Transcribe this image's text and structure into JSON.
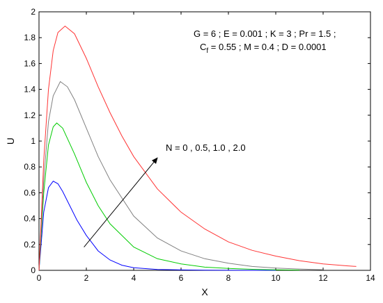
{
  "chart_data": {
    "type": "line",
    "xlabel": "X",
    "ylabel": "U",
    "xlim": [
      0,
      14
    ],
    "ylim": [
      0,
      2
    ],
    "xticks": [
      0,
      2,
      4,
      6,
      8,
      10,
      12,
      14
    ],
    "yticks": [
      0,
      0.2,
      0.4,
      0.6,
      0.8,
      1,
      1.2,
      1.4,
      1.6,
      1.8,
      2
    ],
    "xtick_labels": [
      "0",
      "2",
      "4",
      "6",
      "8",
      "10",
      "12",
      "14"
    ],
    "ytick_labels": [
      "0",
      "0.2",
      "0.4",
      "0.6",
      "0.8",
      "1",
      "1.2",
      "1.4",
      "1.6",
      "1.8",
      "2"
    ],
    "grid": false,
    "params_line1": "G = 6 ;  E = 0.001 ; K = 3 ; Pr = 1.5 ;",
    "params_line2_c": "C",
    "params_line2_sub": "f",
    "params_line2_rest": " = 0.55 ; M = 0.4 ; D = 0.0001",
    "arrow_label": "N = 0 , 0.5,  1.0 , 2.0",
    "arrow": {
      "from": [
        1.9,
        0.18
      ],
      "to": [
        5.0,
        0.87
      ]
    },
    "series": [
      {
        "color": "#0000ff",
        "x": [
          0,
          0.2,
          0.4,
          0.6,
          0.8,
          1.0,
          1.3,
          1.6,
          2.0,
          2.5,
          3.0,
          3.5,
          4.0,
          5.0,
          6.0,
          7.0,
          8.0,
          10.0
        ],
        "values": [
          0,
          0.45,
          0.64,
          0.69,
          0.67,
          0.61,
          0.5,
          0.39,
          0.27,
          0.15,
          0.08,
          0.04,
          0.02,
          0.007,
          0.003,
          0.001,
          0.0005,
          0.0
        ]
      },
      {
        "color": "#00cc00",
        "x": [
          0,
          0.2,
          0.4,
          0.6,
          0.75,
          1.0,
          1.5,
          2.0,
          2.5,
          3.0,
          4.0,
          5.0,
          6.0,
          7.0,
          8.0,
          9.0,
          10.0,
          11.0
        ],
        "values": [
          0,
          0.6,
          0.97,
          1.11,
          1.14,
          1.1,
          0.9,
          0.68,
          0.5,
          0.36,
          0.18,
          0.09,
          0.05,
          0.025,
          0.015,
          0.008,
          0.004,
          0.002
        ]
      },
      {
        "color": "#808080",
        "x": [
          0,
          0.2,
          0.4,
          0.6,
          0.9,
          1.2,
          1.5,
          2.0,
          2.5,
          3.0,
          4.0,
          5.0,
          6.0,
          7.0,
          8.0,
          9.0,
          10.0,
          11.0,
          12.0
        ],
        "values": [
          0,
          0.7,
          1.15,
          1.35,
          1.46,
          1.42,
          1.32,
          1.1,
          0.88,
          0.7,
          0.42,
          0.25,
          0.15,
          0.09,
          0.055,
          0.03,
          0.018,
          0.01,
          0.005
        ]
      },
      {
        "color": "#ff3333",
        "x": [
          0,
          0.2,
          0.4,
          0.6,
          0.8,
          1.1,
          1.5,
          2.0,
          2.5,
          3.0,
          3.5,
          4.0,
          5.0,
          6.0,
          7.0,
          8.0,
          9.0,
          10.0,
          11.0,
          12.0,
          13.0,
          13.4
        ],
        "values": [
          0,
          0.85,
          1.4,
          1.7,
          1.84,
          1.89,
          1.83,
          1.64,
          1.42,
          1.22,
          1.04,
          0.88,
          0.63,
          0.45,
          0.32,
          0.22,
          0.155,
          0.11,
          0.075,
          0.05,
          0.035,
          0.03
        ]
      }
    ]
  }
}
